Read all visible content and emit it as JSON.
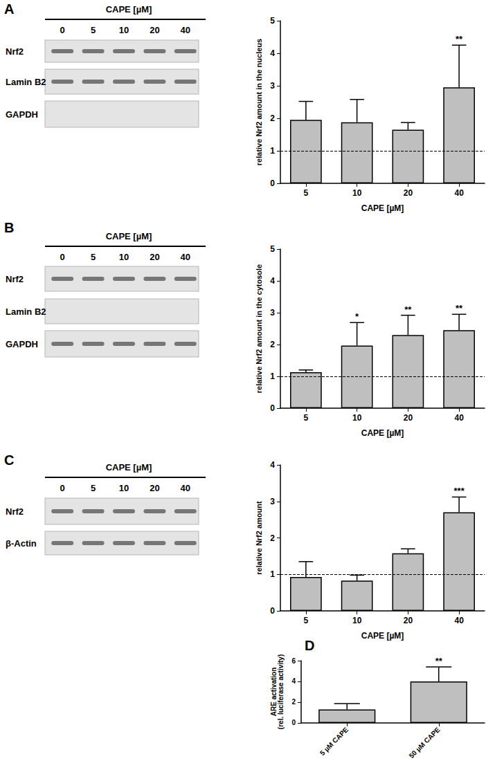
{
  "panel_labels": [
    "A",
    "B",
    "C",
    "D"
  ],
  "blots": [
    {
      "header": "CAPE [µM]",
      "lanes": [
        0,
        5,
        10,
        20,
        40
      ],
      "rows": [
        {
          "label": "Nrf2",
          "bands": true
        },
        {
          "label": "Lamin B2",
          "bands": true
        },
        {
          "label": "GAPDH",
          "bands": false
        }
      ]
    },
    {
      "header": "CAPE [µM]",
      "lanes": [
        0,
        5,
        10,
        20,
        40
      ],
      "rows": [
        {
          "label": "Nrf2",
          "bands": true
        },
        {
          "label": "Lamin B2",
          "bands": false
        },
        {
          "label": "GAPDH",
          "bands": true
        }
      ]
    },
    {
      "header": "CAPE [µM]",
      "lanes": [
        0,
        5,
        10,
        20,
        40
      ],
      "rows": [
        {
          "label": "Nrf2",
          "bands": true
        },
        {
          "label": "β-Actin",
          "bands": true
        }
      ]
    }
  ],
  "chart_data": [
    {
      "type": "bar",
      "categories": [
        "5",
        "10",
        "20",
        "40"
      ],
      "values": [
        1.95,
        1.88,
        1.65,
        2.95
      ],
      "errors": [
        0.57,
        0.7,
        0.22,
        1.3
      ],
      "significance": [
        null,
        null,
        null,
        "**"
      ],
      "x_label": "CAPE [µM]",
      "y_label": "relative Nrf2 amount in the nucleus",
      "ylim": [
        0,
        5
      ],
      "yticks": [
        0,
        1,
        2,
        3,
        4,
        5
      ],
      "hline": 1,
      "color": "#bfbfbf",
      "grid": false
    },
    {
      "type": "bar",
      "categories": [
        "5",
        "10",
        "20",
        "40"
      ],
      "values": [
        1.13,
        1.97,
        2.3,
        2.45
      ],
      "errors": [
        0.07,
        0.72,
        0.62,
        0.5
      ],
      "significance": [
        null,
        "*",
        "**",
        "**"
      ],
      "x_label": "CAPE [µM]",
      "y_label": "relative Nrf2 amount in the cytosole",
      "ylim": [
        0,
        5
      ],
      "yticks": [
        0,
        1,
        2,
        3,
        4,
        5
      ],
      "hline": 1,
      "color": "#bfbfbf",
      "grid": false
    },
    {
      "type": "bar",
      "categories": [
        "5",
        "10",
        "20",
        "40"
      ],
      "values": [
        0.93,
        0.83,
        1.58,
        2.7
      ],
      "errors": [
        0.42,
        0.15,
        0.12,
        0.42
      ],
      "significance": [
        null,
        null,
        null,
        "***"
      ],
      "x_label": "CAPE [µM]",
      "y_label": "relative Nrf2 amount",
      "ylim": [
        0,
        4
      ],
      "yticks": [
        0,
        1,
        2,
        3,
        4
      ],
      "hline": 1,
      "color": "#bfbfbf",
      "grid": false
    },
    {
      "type": "bar",
      "categories": [
        "5 µM CAPE",
        "50 µM CAPE"
      ],
      "values": [
        1.3,
        4.0
      ],
      "errors": [
        0.57,
        1.4
      ],
      "significance": [
        null,
        "**"
      ],
      "y_label": "ARE activation\n(rel. luciferase activity)",
      "ylim": [
        0,
        6
      ],
      "yticks": [
        0,
        2,
        4,
        6
      ],
      "color": "#bfbfbf",
      "grid": false
    }
  ]
}
